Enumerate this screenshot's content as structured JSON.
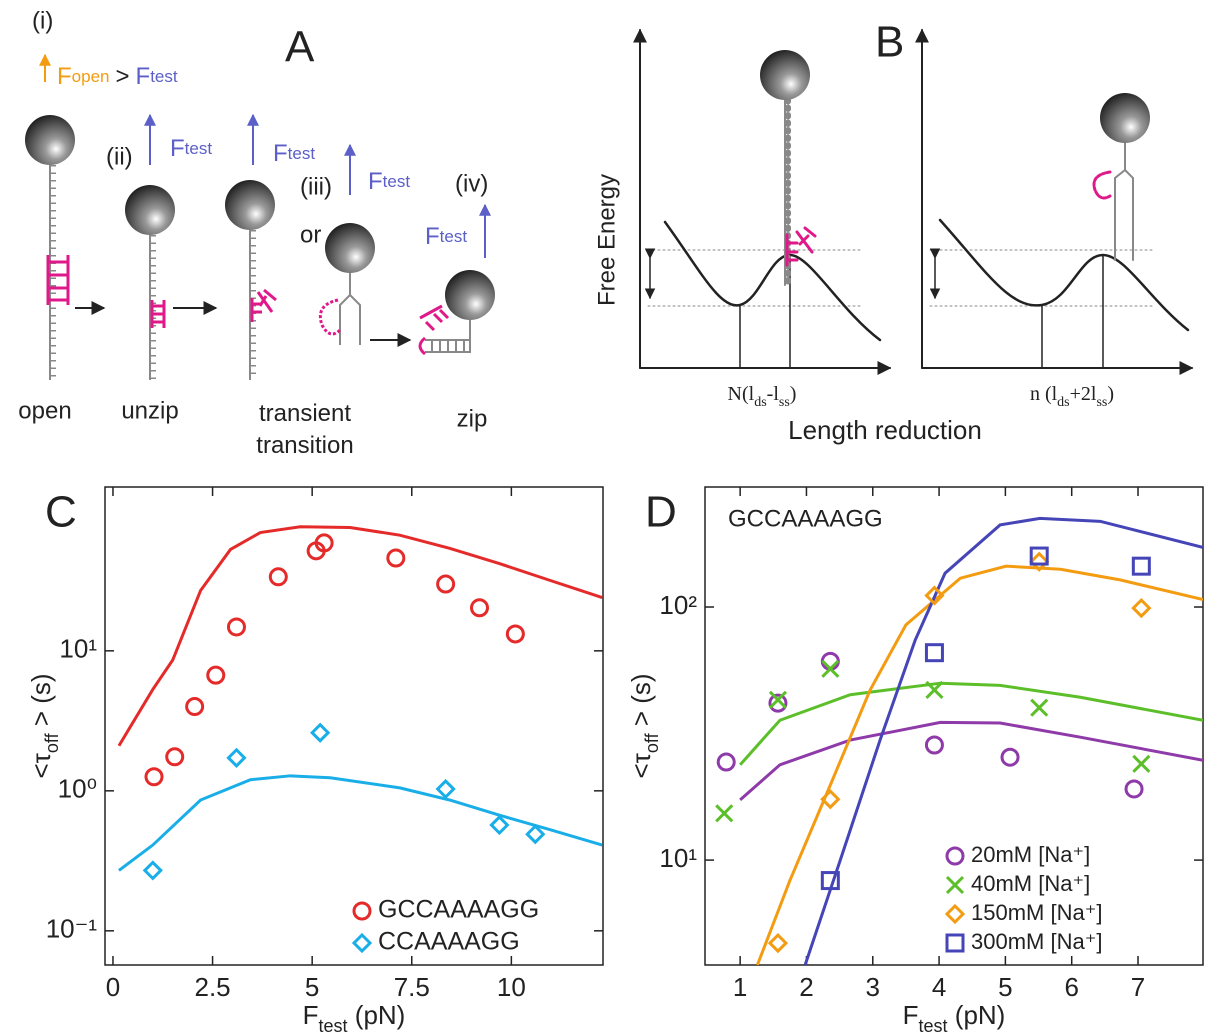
{
  "panel_a": {
    "label": "A",
    "steps": [
      "(i)",
      "(ii)",
      "(iii)",
      "(iv)"
    ],
    "or": "or",
    "gt": ">",
    "f_open": {
      "symbol": "F",
      "sub": "open"
    },
    "f_test": {
      "symbol": "F",
      "sub": "test"
    },
    "states": [
      "open",
      "unzip",
      "transient transition",
      "zip"
    ]
  },
  "panel_b": {
    "label": "B",
    "y_label": "Free  Energy",
    "x_label": "Length reduction",
    "n1": {
      "pre": "N(l",
      "sub1": "ds",
      "mid": "-l",
      "sub2": "ss",
      "post": ")"
    },
    "n2": {
      "pre": "n (l",
      "sub1": "ds",
      "mid": "+2l",
      "sub2": "ss",
      "post": ")"
    }
  },
  "chart_data": [
    {
      "type": "scatter",
      "panel_label": "C",
      "xlabel": {
        "text": "F",
        "sub": "test",
        "after": " (pN)"
      },
      "ylabel": {
        "text": "<τ",
        "sub": "off",
        "after": " > (s)"
      },
      "xlim": [
        -0.2,
        12.3
      ],
      "ylim": [
        0.057,
        148
      ],
      "ylog": true,
      "xticks": [
        0,
        2.5,
        5,
        7.5,
        10
      ],
      "yticks": [
        {
          "value": 0.1,
          "label": "10⁻¹"
        },
        {
          "value": 1,
          "label": "10⁰"
        },
        {
          "value": 10,
          "label": "10¹"
        }
      ],
      "legend": "lower right",
      "legend_colored_text": false,
      "series": [
        {
          "name": "GCCAAAAGG",
          "color": "#e52a2a",
          "marker": "circle",
          "x": [
            1.03,
            1.55,
            2.05,
            2.58,
            3.1,
            4.15,
            5.1,
            5.3,
            7.1,
            8.35,
            9.2,
            10.1
          ],
          "values": [
            1.26,
            1.75,
            4.0,
            6.7,
            14.8,
            33.8,
            51.8,
            59,
            46,
            30,
            20.3,
            13.2
          ]
        },
        {
          "name": "CCAAAAGG",
          "color": "#19aee8",
          "marker": "diamond",
          "x": [
            1.0,
            3.1,
            5.2,
            8.35,
            9.7,
            10.6
          ],
          "values": [
            0.27,
            1.72,
            2.6,
            1.03,
            0.57,
            0.49
          ]
        }
      ],
      "fits": [
        {
          "color": "#e52a2a",
          "x": [
            0.15,
            1,
            1.5,
            2.2,
            2.95,
            3.7,
            4.7,
            5.95,
            7.2,
            8.45,
            9.7,
            10.95,
            12.28
          ],
          "values": [
            2.1,
            5.3,
            8.6,
            27,
            53,
            70,
            77,
            76,
            67,
            54,
            42,
            32,
            24
          ]
        },
        {
          "color": "#19aee8",
          "x": [
            0.15,
            1,
            2.2,
            3.45,
            4.45,
            5.45,
            7.2,
            8.45,
            9.7,
            10.95,
            12.28
          ],
          "values": [
            0.27,
            0.41,
            0.86,
            1.2,
            1.28,
            1.24,
            1.05,
            0.86,
            0.67,
            0.53,
            0.41
          ]
        }
      ]
    },
    {
      "type": "scatter",
      "panel_label": "D",
      "annotation": "GCCAAAAGG",
      "xlabel": {
        "text": "F",
        "sub": "test",
        "after": " (pN)"
      },
      "ylabel": {
        "text": "<τ",
        "sub": "off",
        "after": " > (s)"
      },
      "xlim": [
        0.47,
        7.98
      ],
      "ylim": [
        3.85,
        298
      ],
      "ylog": true,
      "xticks": [
        1,
        2,
        3,
        4,
        5,
        6,
        7
      ],
      "yticks": [
        {
          "value": 10,
          "label": "10¹"
        },
        {
          "value": 100,
          "label": "10²"
        }
      ],
      "legend": "lower right",
      "legend_colored_text": true,
      "series": [
        {
          "name": "20mM [Na⁺]",
          "color": "#8e3aa8",
          "marker": "circle",
          "x": [
            0.79,
            1.57,
            2.36,
            3.93,
            5.07,
            6.94
          ],
          "values": [
            24.4,
            41.7,
            61,
            28.5,
            25.5,
            19.1
          ]
        },
        {
          "name": "40mM [Na⁺]",
          "color": "#5cbf2a",
          "marker": "x",
          "x": [
            0.76,
            1.57,
            2.36,
            3.93,
            5.51,
            7.05
          ],
          "values": [
            15.3,
            43,
            57,
            47,
            40,
            24
          ]
        },
        {
          "name": "150mM [Na⁺]",
          "color": "#f39c12",
          "marker": "diamond",
          "x": [
            1.57,
            2.36,
            3.93,
            5.51,
            7.05
          ],
          "values": [
            4.7,
            17.4,
            111,
            151,
            99
          ]
        },
        {
          "name": "300mM [Na⁺]",
          "color": "#4545b8",
          "marker": "square",
          "x": [
            2.36,
            3.93,
            5.51,
            7.05
          ],
          "values": [
            8.3,
            66,
            159,
            145
          ]
        }
      ],
      "fits": [
        {
          "color": "#8e3aa8",
          "x": [
            1.0,
            1.6,
            2.66,
            4.02,
            4.92,
            6.13,
            7.98
          ],
          "values": [
            17.3,
            23.8,
            29.8,
            35,
            34.8,
            30.6,
            24.8
          ]
        },
        {
          "color": "#5cbf2a",
          "x": [
            1.0,
            1.6,
            2.66,
            4.02,
            4.92,
            6.13,
            7.98
          ],
          "values": [
            23.8,
            35.7,
            45,
            50,
            49,
            44,
            35.7
          ]
        },
        {
          "color": "#f39c12",
          "x": [
            1.26,
            1.75,
            2.36,
            2.96,
            3.5,
            4.32,
            5.01,
            5.83,
            6.73,
            7.98
          ],
          "values": [
            3.85,
            8.3,
            19.8,
            47,
            85,
            130,
            145,
            141,
            128,
            107
          ]
        },
        {
          "color": "#4545b8",
          "x": [
            1.98,
            2.51,
            3.11,
            3.64,
            4.09,
            4.92,
            5.52,
            6.43,
            7.98
          ],
          "values": [
            3.85,
            10,
            29.8,
            74,
            136,
            211,
            224,
            218,
            172
          ]
        }
      ]
    }
  ]
}
